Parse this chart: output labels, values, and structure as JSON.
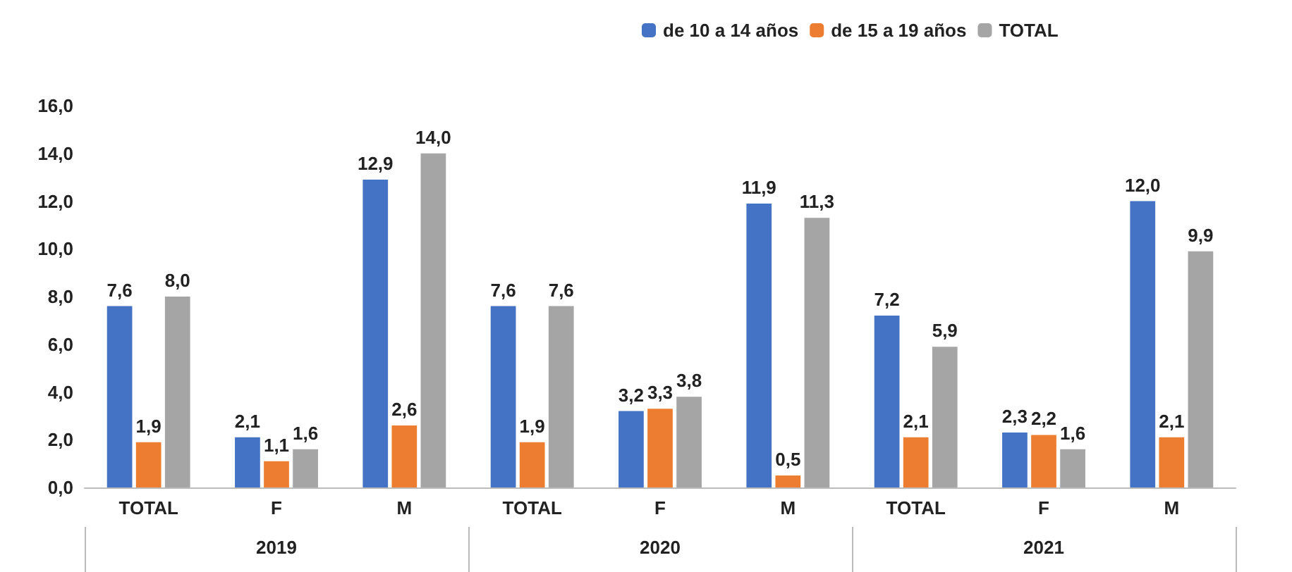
{
  "chart_data": {
    "type": "bar",
    "categories": [
      "TOTAL",
      "F",
      "M",
      "TOTAL",
      "F",
      "M",
      "TOTAL",
      "F",
      "M"
    ],
    "annotations": [
      "2019",
      "2020",
      "2021"
    ],
    "series": [
      {
        "name": "de 10 a 14 años",
        "color": "#4472c4",
        "values": [
          7.6,
          2.1,
          12.9,
          7.6,
          3.2,
          11.9,
          7.2,
          2.3,
          12.0
        ],
        "value_labels": [
          "7,6",
          "2,1",
          "12,9",
          "7,6",
          "3,2",
          "11,9",
          "7,2",
          "2,3",
          "12,0"
        ]
      },
      {
        "name": "de 15 a 19 años",
        "color": "#ed7d31",
        "values": [
          1.9,
          1.1,
          2.6,
          1.9,
          3.3,
          0.5,
          2.1,
          2.2,
          2.1
        ],
        "value_labels": [
          "1,9",
          "1,1",
          "2,6",
          "1,9",
          "3,3",
          "0,5",
          "2,1",
          "2,2",
          "2,1"
        ]
      },
      {
        "name": "TOTAL",
        "color": "#a5a5a5",
        "values": [
          8.0,
          1.6,
          14.0,
          7.6,
          3.8,
          11.3,
          5.9,
          1.6,
          9.9
        ],
        "value_labels": [
          "8,0",
          "1,6",
          "14,0",
          "7,6",
          "3,8",
          "11,3",
          "5,9",
          "1,6",
          "9,9"
        ]
      }
    ],
    "ylim": [
      0,
      16
    ],
    "yticks": [
      {
        "value": 0,
        "label": "0,0"
      },
      {
        "value": 2,
        "label": "2,0"
      },
      {
        "value": 4,
        "label": "4,0"
      },
      {
        "value": 6,
        "label": "6,0"
      },
      {
        "value": 8,
        "label": "8,0"
      },
      {
        "value": 10,
        "label": "10,0"
      },
      {
        "value": 12,
        "label": "12,0"
      },
      {
        "value": 14,
        "label": "14,0"
      },
      {
        "value": 16,
        "label": "16,0"
      }
    ],
    "legend": "top",
    "grid": false
  }
}
